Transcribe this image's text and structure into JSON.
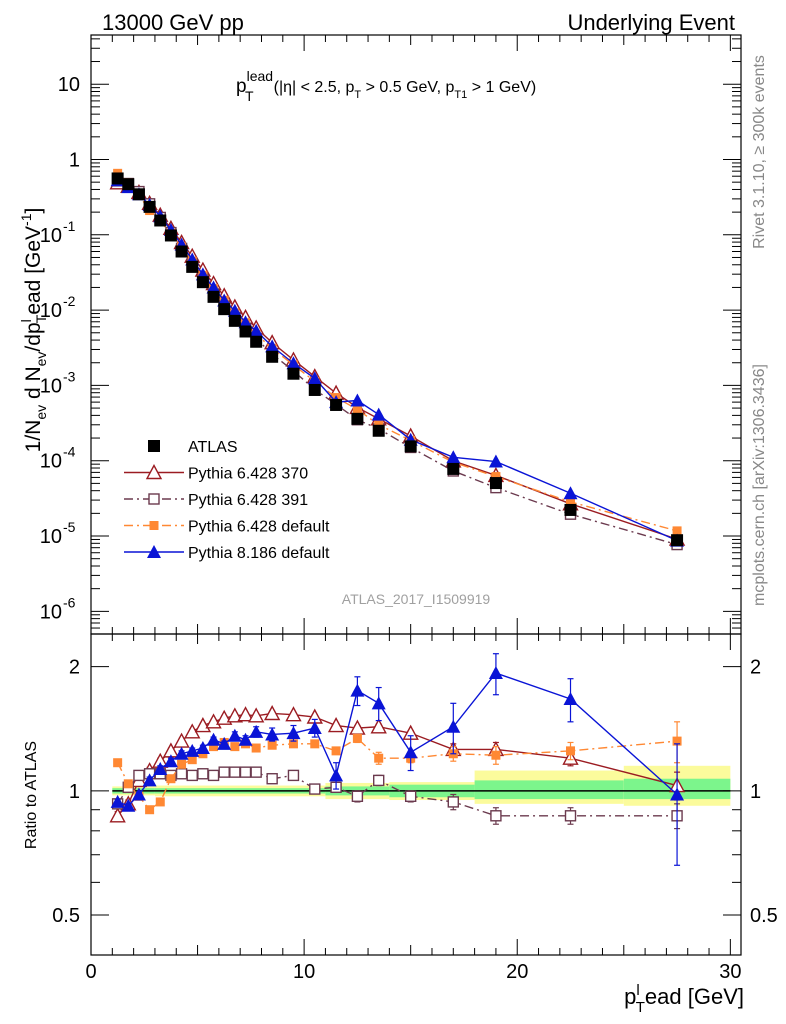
{
  "header": {
    "left": "13000 GeV pp",
    "right": "Underlying Event"
  },
  "side_labels": {
    "rivet": "Rivet 3.1.10, ≥ 300k events",
    "mcplots": "mcplots.cern.ch [arXiv:1306.3436]"
  },
  "colors": {
    "atlas": "#000000",
    "py370": "#9b1c22",
    "py391": "#6b3a4e",
    "py6def": "#ff8833",
    "py8def": "#0a14d6",
    "band_inner": "#7cf58c",
    "band_outer": "#fbfb9c"
  },
  "chart_data": [
    {
      "panel": "main",
      "type": "scatter",
      "title": "p_T^lead (|η| < 2.5, p_T > 0.5 GeV, p_T1 > 1 GeV)",
      "title_parts": {
        "p": "p",
        "lead": "lead",
        "T": "T",
        "cond1": "(|η| < 2.5, p",
        "cond2": " > 0.5 GeV, p",
        "cond3": " > 1 GeV)",
        "T1": "T1"
      },
      "ylabel": "1/N_ev d N_ev/dp_T^l ead [GeV^-1]",
      "ylabel_parts": {
        "a": "1/N",
        "ev": "ev",
        "b": " d N",
        "c": "/dp",
        "T": "T",
        "l": "l",
        "d": "ead [GeV",
        "exp": "-1",
        "e": "]"
      },
      "yscale": "log",
      "xlim": [
        0,
        30.5
      ],
      "ylim": [
        5e-07,
        45
      ],
      "yticks": [
        {
          "v": 1e-06,
          "base": "10",
          "exp": "-6"
        },
        {
          "v": 1e-05,
          "base": "10",
          "exp": "-5"
        },
        {
          "v": 0.0001,
          "base": "10",
          "exp": "-4"
        },
        {
          "v": 0.001,
          "base": "10",
          "exp": "-3"
        },
        {
          "v": 0.01,
          "base": "10",
          "exp": "-2"
        },
        {
          "v": 0.1,
          "base": "10",
          "exp": "-1"
        },
        {
          "v": 1,
          "base": "1",
          "exp": ""
        },
        {
          "v": 10,
          "base": "10",
          "exp": ""
        }
      ],
      "analysis_label": "ATLAS_2017_I1509919",
      "x": [
        1.25,
        1.75,
        2.25,
        2.75,
        3.25,
        3.75,
        4.25,
        4.75,
        5.25,
        5.75,
        6.25,
        6.75,
        7.25,
        7.75,
        8.5,
        9.5,
        10.5,
        11.5,
        12.5,
        13.5,
        15.0,
        17.0,
        19.0,
        22.5,
        27.5
      ],
      "series": [
        {
          "name": "ATLAS",
          "key": "atlas",
          "marker": "square-filled",
          "values": [
            0.56,
            0.47,
            0.345,
            0.235,
            0.155,
            0.098,
            0.06,
            0.0375,
            0.0235,
            0.015,
            0.0103,
            0.0072,
            0.0052,
            0.0038,
            0.0024,
            0.00143,
            0.00087,
            0.00055,
            0.00036,
            0.00025,
            0.000155,
            7.78e-05,
            5.05e-05,
            2.22e-05,
            8.8e-06
          ]
        },
        {
          "name": "Pythia 6.428 370",
          "key": "py370",
          "marker": "triangle-open",
          "line": "solid",
          "values": [
            0.49,
            0.44,
            0.365,
            0.262,
            0.182,
            0.122,
            0.079,
            0.052,
            0.034,
            0.0225,
            0.0155,
            0.011,
            0.008,
            0.0058,
            0.0037,
            0.00218,
            0.00131,
            0.00079,
            0.00051,
            0.00036,
            0.000213,
            9.94e-05,
            6.38e-05,
            2.68e-05,
            9.1e-06
          ]
        },
        {
          "name": "Pythia 6.428 391",
          "key": "py391",
          "marker": "square-open",
          "line": "dashdot",
          "values": [
            0.52,
            0.48,
            0.375,
            0.258,
            0.17,
            0.107,
            0.066,
            0.041,
            0.0258,
            0.0164,
            0.0114,
            0.008,
            0.00576,
            0.0042,
            0.0026,
            0.00156,
            0.00088,
            0.00056,
            0.00035,
            0.000265,
            0.00015,
            7.31e-05,
            4.39e-05,
            1.95e-05,
            7.7e-06
          ]
        },
        {
          "name": "Pythia 6.428 default",
          "key": "py6def",
          "marker": "square-filled-small",
          "line": "dashdot",
          "values": [
            0.655,
            0.49,
            0.335,
            0.21,
            0.15,
            0.105,
            0.069,
            0.0445,
            0.029,
            0.0193,
            0.0135,
            0.0092,
            0.0068,
            0.0048,
            0.0031,
            0.00187,
            0.00113,
            0.00069,
            0.00048,
            0.0003,
            0.000186,
            9.54e-05,
            6.16e-05,
            2.84e-05,
            1.17e-05
          ]
        },
        {
          "name": "Pythia 8.186 default",
          "key": "py8def",
          "marker": "triangle-filled",
          "line": "solid",
          "values": [
            0.53,
            0.43,
            0.345,
            0.25,
            0.176,
            0.116,
            0.074,
            0.047,
            0.0298,
            0.02,
            0.0134,
            0.0098,
            0.0069,
            0.0053,
            0.0033,
            0.00197,
            0.00124,
            0.0006,
            0.00063,
            0.00041,
            0.00019,
            0.000111,
            9.75e-05,
            3.7e-05,
            8.7e-06
          ]
        }
      ],
      "legend": {
        "position": "bottom-left",
        "entries": [
          "ATLAS",
          "Pythia 6.428 370",
          "Pythia 6.428 391",
          "Pythia 6.428 default",
          "Pythia 8.186 default"
        ]
      }
    },
    {
      "panel": "ratio",
      "type": "scatter",
      "ylabel": "Ratio to ATLAS",
      "xlabel": "p_T^l ead [GeV]",
      "xlabel_parts": {
        "p": "p",
        "T": "T",
        "l": "l",
        "rest": "ead [GeV]"
      },
      "yscale": "log",
      "xlim": [
        0,
        30.5
      ],
      "ylim": [
        0.4,
        2.4
      ],
      "yticks": [
        {
          "v": 0.5,
          "label": "0.5"
        },
        {
          "v": 1,
          "label": "1"
        },
        {
          "v": 2,
          "label": "2"
        }
      ],
      "xticks": [
        {
          "v": 0,
          "label": "0"
        },
        {
          "v": 10,
          "label": "10"
        },
        {
          "v": 20,
          "label": "20"
        },
        {
          "v": 30,
          "label": "30"
        }
      ],
      "x": [
        1.25,
        1.75,
        2.25,
        2.75,
        3.25,
        3.75,
        4.25,
        4.75,
        5.25,
        5.75,
        6.25,
        6.75,
        7.25,
        7.75,
        8.5,
        9.5,
        10.5,
        11.5,
        12.5,
        13.5,
        15.0,
        17.0,
        19.0,
        22.5,
        27.5
      ],
      "bands": [
        {
          "x1": 1.0,
          "x2": 3.0,
          "inner": [
            0.985,
            1.015
          ],
          "outer": [
            0.975,
            1.025
          ]
        },
        {
          "x1": 3.0,
          "x2": 11.0,
          "inner": [
            0.985,
            1.015
          ],
          "outer": [
            0.97,
            1.03
          ]
        },
        {
          "x1": 11.0,
          "x2": 14.0,
          "inner": [
            0.975,
            1.025
          ],
          "outer": [
            0.955,
            1.045
          ]
        },
        {
          "x1": 14.0,
          "x2": 18.0,
          "inner": [
            0.965,
            1.035
          ],
          "outer": [
            0.95,
            1.05
          ]
        },
        {
          "x1": 18.0,
          "x2": 25.0,
          "inner": [
            0.955,
            1.06
          ],
          "outer": [
            0.93,
            1.12
          ]
        },
        {
          "x1": 25.0,
          "x2": 30.0,
          "inner": [
            0.955,
            1.07
          ],
          "outer": [
            0.92,
            1.15
          ]
        }
      ],
      "series": [
        {
          "name": "Pythia 6.428 370",
          "key": "py370",
          "values": [
            0.87,
            0.93,
            1.06,
            1.12,
            1.18,
            1.25,
            1.32,
            1.39,
            1.44,
            1.47,
            1.5,
            1.52,
            1.53,
            1.52,
            1.54,
            1.53,
            1.51,
            1.44,
            1.42,
            1.43,
            1.38,
            1.26,
            1.26,
            1.2,
            1.03
          ],
          "err": [
            0.02,
            0.02,
            0.02,
            0.02,
            0.02,
            0.02,
            0.02,
            0.02,
            0.02,
            0.02,
            0.02,
            0.02,
            0.02,
            0.02,
            0.02,
            0.02,
            0.02,
            0.02,
            0.02,
            0.02,
            0.02,
            0.04,
            0.05,
            0.05,
            0.08
          ]
        },
        {
          "name": "Pythia 6.428 391",
          "key": "py391",
          "values": [
            0.93,
            1.02,
            1.09,
            1.1,
            1.1,
            1.09,
            1.1,
            1.09,
            1.1,
            1.09,
            1.11,
            1.11,
            1.11,
            1.11,
            1.07,
            1.09,
            1.01,
            1.02,
            0.97,
            1.06,
            0.97,
            0.94,
            0.87,
            0.87,
            0.87
          ],
          "err": [
            0.01,
            0.01,
            0.01,
            0.01,
            0.01,
            0.01,
            0.01,
            0.01,
            0.01,
            0.01,
            0.01,
            0.01,
            0.01,
            0.01,
            0.01,
            0.01,
            0.02,
            0.02,
            0.03,
            0.03,
            0.03,
            0.04,
            0.04,
            0.04,
            0.06
          ]
        },
        {
          "name": "Pythia 6.428 default",
          "key": "py6def",
          "values": [
            1.17,
            1.04,
            0.97,
            0.9,
            0.94,
            1.07,
            1.16,
            1.19,
            1.23,
            1.28,
            1.31,
            1.28,
            1.3,
            1.27,
            1.29,
            1.3,
            1.3,
            1.25,
            1.34,
            1.2,
            1.2,
            1.23,
            1.22,
            1.25,
            1.32
          ],
          "err": [
            0.01,
            0.01,
            0.01,
            0.01,
            0.01,
            0.01,
            0.01,
            0.01,
            0.01,
            0.01,
            0.01,
            0.01,
            0.01,
            0.01,
            0.01,
            0.01,
            0.02,
            0.02,
            0.03,
            0.04,
            0.03,
            0.05,
            0.06,
            0.06,
            0.15
          ]
        },
        {
          "name": "Pythia 8.186 default",
          "key": "py8def",
          "values": [
            0.94,
            0.92,
            0.98,
            1.06,
            1.13,
            1.18,
            1.23,
            1.25,
            1.27,
            1.33,
            1.3,
            1.36,
            1.33,
            1.39,
            1.37,
            1.38,
            1.42,
            1.09,
            1.75,
            1.63,
            1.24,
            1.43,
            1.93,
            1.67,
            0.98
          ],
          "err": [
            0.01,
            0.01,
            0.01,
            0.02,
            0.02,
            0.02,
            0.02,
            0.02,
            0.02,
            0.02,
            0.02,
            0.03,
            0.03,
            0.04,
            0.05,
            0.06,
            0.07,
            0.08,
            0.14,
            0.15,
            0.12,
            0.2,
            0.22,
            0.2,
            0.32
          ]
        }
      ]
    }
  ]
}
